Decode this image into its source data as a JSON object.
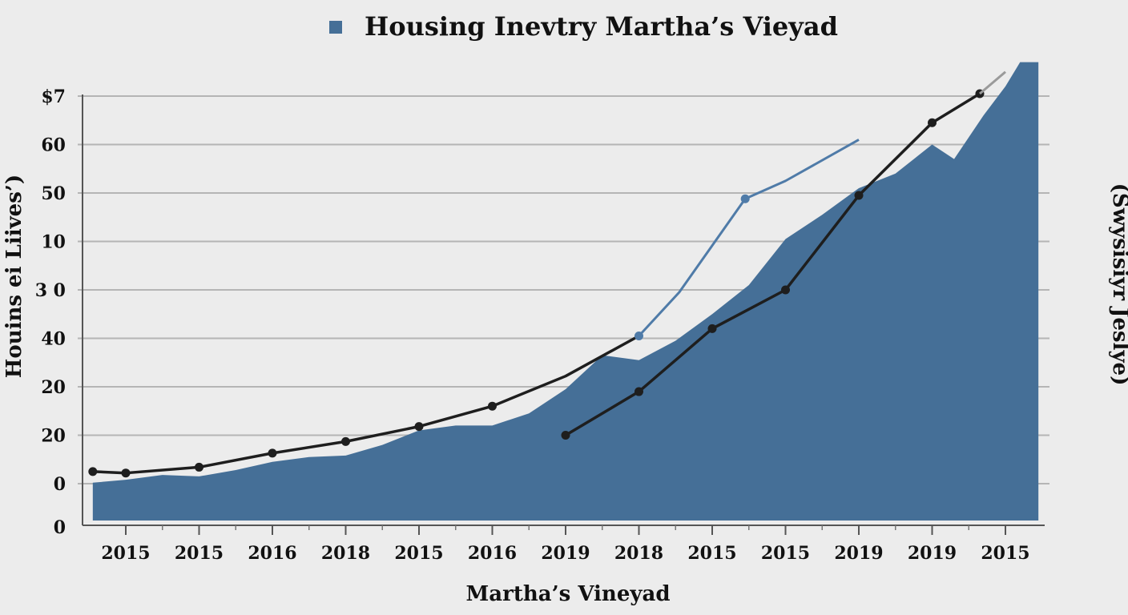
{
  "chart_data": {
    "type": "area",
    "title": "Housing Inevtry Martha’s Vieyad",
    "xlabel": "Martha’s Vineyad",
    "ylabel": "Houins ei Liives’)",
    "ylabel_right": "(Swysisiyr Jeslye)",
    "y_tick_labels": [
      "0",
      "0",
      "20",
      "20",
      "40",
      "3 0",
      "10",
      "50",
      "60",
      "$7"
    ],
    "x_tick_labels": [
      "2015",
      "2015",
      "2016",
      "2018",
      "2015",
      "2016",
      "2019",
      "2018",
      "2015",
      "2015",
      "2019",
      "2019",
      "2015"
    ],
    "x_positions": [
      0,
      1,
      2,
      3,
      4,
      5,
      6,
      7,
      8,
      9,
      10,
      11,
      12
    ],
    "xlim": [
      -0.45,
      12.45
    ],
    "ylim": [
      -0.75,
      9
    ],
    "grid": true,
    "legend": "top-center",
    "colors": {
      "area": "#456f97",
      "blue_line": "#4f7ba8",
      "black_line": "#1e1e1e",
      "gray_line": "#9a9a9a",
      "grid": "#b5b5b5",
      "background": "#ececec"
    },
    "series": [
      {
        "kind": "area",
        "points": [
          [
            -0.45,
            0.02
          ],
          [
            0,
            0.08
          ],
          [
            0.5,
            0.18
          ],
          [
            1,
            0.15
          ],
          [
            1.5,
            0.28
          ],
          [
            2,
            0.45
          ],
          [
            2.5,
            0.55
          ],
          [
            3,
            0.58
          ],
          [
            3.5,
            0.8
          ],
          [
            4,
            1.1
          ],
          [
            4.5,
            1.2
          ],
          [
            5,
            1.2
          ],
          [
            5.5,
            1.45
          ],
          [
            6,
            1.95
          ],
          [
            6.5,
            2.65
          ],
          [
            7,
            2.55
          ],
          [
            7.5,
            2.95
          ],
          [
            8,
            3.5
          ],
          [
            8.5,
            4.1
          ],
          [
            9,
            5.05
          ],
          [
            9.5,
            5.55
          ],
          [
            10,
            6.1
          ],
          [
            10.5,
            6.4
          ],
          [
            11,
            7.0
          ],
          [
            11.3,
            6.7
          ],
          [
            11.7,
            7.6
          ],
          [
            12,
            8.2
          ],
          [
            12.2,
            8.7
          ],
          [
            12.45,
            8.7
          ]
        ]
      },
      {
        "kind": "line",
        "color_key": "black_line",
        "points": [
          [
            -0.45,
            0.25
          ],
          [
            0,
            0.22
          ],
          [
            1,
            0.34
          ],
          [
            2,
            0.63
          ],
          [
            3,
            0.87
          ],
          [
            4,
            1.18
          ],
          [
            5,
            1.6
          ],
          [
            6,
            2.22
          ],
          [
            7,
            3.05
          ]
        ],
        "markers": [
          0,
          1,
          2,
          3,
          4,
          5,
          6
        ]
      },
      {
        "kind": "line",
        "color_key": "black_line",
        "points": [
          [
            6,
            1.0
          ],
          [
            7,
            1.9
          ],
          [
            8,
            3.2
          ],
          [
            9,
            4.0
          ],
          [
            10,
            5.95
          ],
          [
            11,
            7.45
          ],
          [
            11.65,
            8.05
          ]
        ],
        "markers": [
          0,
          1,
          2,
          3,
          4,
          5,
          6
        ]
      },
      {
        "kind": "line",
        "color_key": "blue_line",
        "points": [
          [
            7,
            3.05
          ],
          [
            7.55,
            3.95
          ],
          [
            8.45,
            5.88
          ],
          [
            9,
            6.25
          ],
          [
            10,
            7.1
          ]
        ],
        "markers": [
          0,
          2
        ]
      },
      {
        "kind": "line",
        "color_key": "gray_line",
        "points": [
          [
            11.65,
            8.05
          ],
          [
            12,
            8.5
          ]
        ],
        "markers": []
      }
    ]
  }
}
